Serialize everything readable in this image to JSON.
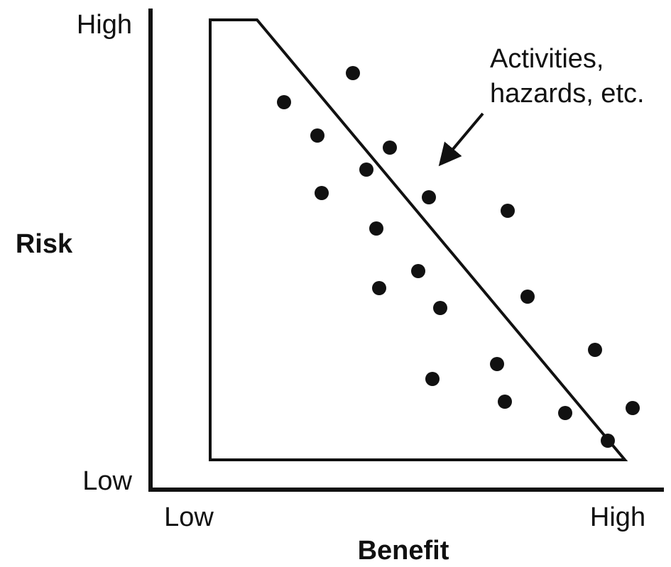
{
  "y_axis": {
    "label": "Risk",
    "high": "High",
    "low": "Low"
  },
  "x_axis": {
    "label": "Benefit",
    "low": "Low",
    "high": "High"
  },
  "annotation": {
    "lines": [
      "Activities,",
      "hazards, etc."
    ]
  }
}
